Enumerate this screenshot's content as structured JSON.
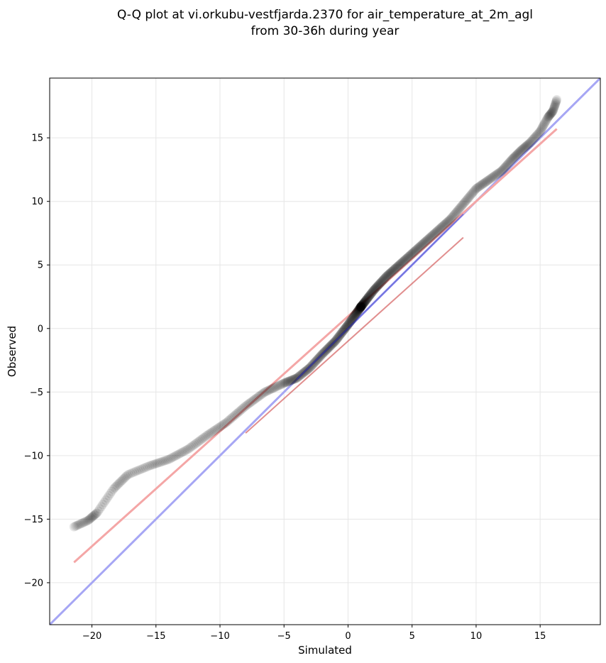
{
  "chart_data": {
    "type": "scatter",
    "title_line1": "Q-Q plot at vi.orkubu-vestfjarda.2370 for air_temperature_at_2m_agl",
    "title_line2": "from 30-36h during year",
    "xlabel": "Simulated",
    "ylabel": "Observed",
    "xlim": [
      -23.3,
      19.7
    ],
    "ylim": [
      -23.3,
      19.7
    ],
    "xticks": [
      -20,
      -15,
      -10,
      -5,
      0,
      5,
      10,
      15
    ],
    "yticks": [
      -20,
      -15,
      -10,
      -5,
      0,
      5,
      10,
      15
    ],
    "xtick_labels": [
      "−20",
      "−15",
      "−10",
      "−5",
      "0",
      "5",
      "10",
      "15"
    ],
    "ytick_labels": [
      "−20",
      "−15",
      "−10",
      "−5",
      "0",
      "5",
      "10",
      "15"
    ],
    "grid": true,
    "series": [
      {
        "kind": "quantiles",
        "color": "#000000",
        "quantile_curve_x": [
          -21.4,
          -20.3,
          -19.6,
          -18.3,
          -17.2,
          -15.5,
          -14.0,
          -12.5,
          -11.0,
          -9.5,
          -8.0,
          -6.5,
          -5.0,
          -4.0,
          -3.0,
          -2.0,
          -1.0,
          0.0,
          1.0,
          2.0,
          3.0,
          4.0,
          5.0,
          6.0,
          7.0,
          8.0,
          9.0,
          10.0,
          11.0,
          12.0,
          12.8,
          13.5,
          14.2,
          15.0,
          15.6,
          16.0,
          16.3
        ],
        "quantile_curve_y": [
          -15.6,
          -15.1,
          -14.5,
          -12.6,
          -11.5,
          -10.8,
          -10.3,
          -9.5,
          -8.4,
          -7.4,
          -6.1,
          -5.0,
          -4.3,
          -3.9,
          -3.1,
          -2.0,
          -1.0,
          0.3,
          1.7,
          3.0,
          4.1,
          5.0,
          5.9,
          6.8,
          7.7,
          8.6,
          9.8,
          11.0,
          11.7,
          12.4,
          13.3,
          14.0,
          14.6,
          15.5,
          16.6,
          17.1,
          18.0
        ]
      },
      {
        "kind": "fit-line",
        "color": "#f4a6a6",
        "x": [
          -21.4,
          16.3
        ],
        "y": [
          -18.4,
          15.7
        ]
      },
      {
        "kind": "identity-line",
        "color": "#a6a6f4",
        "x": [
          -23.3,
          19.7
        ],
        "y": [
          -23.3,
          19.7
        ]
      }
    ]
  }
}
